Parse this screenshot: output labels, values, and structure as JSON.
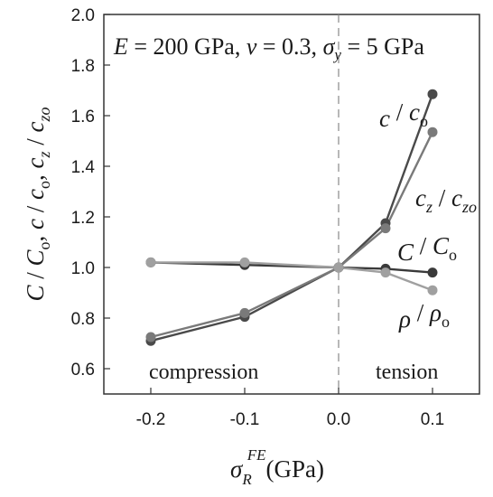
{
  "chart_data": {
    "type": "line",
    "xlim": [
      -0.25,
      0.15
    ],
    "ylim": [
      0.5,
      2.0
    ],
    "x_ticks": [
      -0.2,
      -0.1,
      0.0,
      0.1
    ],
    "x_tick_labels": [
      "-0.2",
      "-0.1",
      "0.0",
      "0.1"
    ],
    "y_ticks": [
      0.6,
      0.8,
      1.0,
      1.2,
      1.4,
      1.6,
      1.8,
      2.0
    ],
    "y_tick_labels": [
      "0.6",
      "0.8",
      "1.0",
      "1.2",
      "1.4",
      "1.6",
      "1.8",
      "2.0"
    ],
    "grid": false,
    "vertical_reference_line": {
      "x": 0.0,
      "style": "dashed",
      "color": "#888888"
    },
    "xlabel": {
      "sigma": "σ",
      "subscript": "R",
      "superscript": "FE",
      "unit": "(GPa)"
    },
    "ylabel": {
      "parts": [
        {
          "main": "C",
          "sep": " / "
        },
        {
          "main": "C",
          "sub": "o",
          "sep": ", "
        },
        {
          "main": "c",
          "sep": " / "
        },
        {
          "main": "c",
          "sub": "o",
          "sep": ", "
        },
        {
          "main": "c",
          "sub": "z",
          "sep": " / "
        },
        {
          "main": "c",
          "sub": "zo",
          "sep": ""
        }
      ]
    },
    "parameters": {
      "E_symbol": "E",
      "E_value": " = 200 GPa,  ",
      "nu_symbol": "ν",
      "nu_value": " = 0.3,  ",
      "sigma_symbol": "σ",
      "sigma_sub": "y",
      "sigma_value": " = 5 GPa"
    },
    "region_labels": {
      "left": "compression",
      "right": "tension"
    },
    "series": [
      {
        "color": "#4a4a4a",
        "x": [
          -0.2,
          -0.1,
          0.0,
          0.05,
          0.1
        ],
        "y": [
          0.71,
          0.805,
          1.0,
          1.175,
          1.685
        ],
        "label": {
          "num": "c",
          "num_sub": "",
          "den": "c",
          "den_sub": "o"
        }
      },
      {
        "color": "#7a7a7a",
        "x": [
          -0.2,
          -0.1,
          0.0,
          0.05,
          0.1
        ],
        "y": [
          0.725,
          0.82,
          1.0,
          1.155,
          1.535
        ],
        "label": {
          "num": "c",
          "num_sub": "z",
          "den": "c",
          "den_sub": "zo"
        }
      },
      {
        "color": "#3a3a3a",
        "x": [
          -0.2,
          -0.1,
          0.0,
          0.05,
          0.1
        ],
        "y": [
          1.02,
          1.01,
          1.0,
          0.995,
          0.98
        ],
        "label": {
          "num": "C",
          "num_sub": "",
          "den": "C",
          "den_sub": "o"
        }
      },
      {
        "color": "#a0a0a0",
        "x": [
          -0.2,
          -0.1,
          0.0,
          0.05,
          0.1
        ],
        "y": [
          1.02,
          1.02,
          1.0,
          0.98,
          0.91
        ],
        "label": {
          "num": "ρ",
          "num_sub": "",
          "den": "ρ",
          "den_sub": "o"
        }
      }
    ]
  }
}
